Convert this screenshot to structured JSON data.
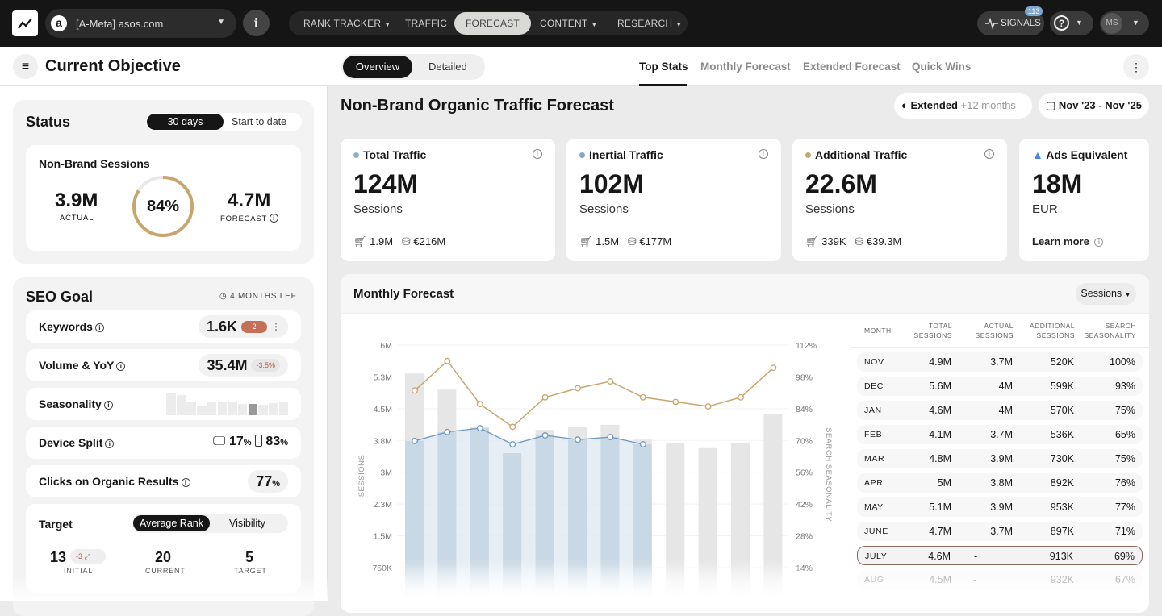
{
  "topbar": {
    "project": "[A-Meta] asos.com",
    "nav": [
      {
        "label": "RANK TRACKER",
        "caret": true
      },
      {
        "label": "TRAFFIC",
        "caret": false
      },
      {
        "label": "FORECAST",
        "caret": false,
        "active": true
      },
      {
        "label": "CONTENT",
        "caret": true
      },
      {
        "label": "RESEARCH",
        "caret": true
      }
    ],
    "signals_label": "SIGNALS",
    "signals_count": "113",
    "user_initials": "MS"
  },
  "left": {
    "title": "Current Objective",
    "status": {
      "title": "Status",
      "toggle": [
        "30 days",
        "Start to date"
      ],
      "card_title": "Non-Brand Sessions",
      "actual": "3.9M",
      "actual_label": "ACTUAL",
      "percent": "84%",
      "percent_value": 84,
      "forecast": "4.7M",
      "forecast_label": "FORECAST"
    },
    "seo": {
      "title": "SEO Goal",
      "time_left": "4 MONTHS LEFT",
      "keywords": {
        "label": "Keywords",
        "value": "1.6K",
        "badge": "2"
      },
      "volume": {
        "label": "Volume & YoY",
        "value": "35.4M",
        "change": "-3.5%"
      },
      "seasonality": {
        "label": "Seasonality",
        "levels": [
          100,
          93,
          75,
          65,
          75,
          76,
          77,
          71,
          69,
          67,
          72,
          76
        ],
        "highlight_index": 8
      },
      "device": {
        "label": "Device Split",
        "desktop": "17",
        "mobile": "83",
        "unit": "%"
      },
      "clicks": {
        "label": "Clicks on Organic Results",
        "value": "77",
        "unit": "%"
      },
      "target": {
        "label": "Target",
        "toggle": [
          "Average Rank",
          "Visibility"
        ],
        "initial": "13",
        "initial_change": "-3",
        "initial_label": "INITIAL",
        "current": "20",
        "current_label": "CURRENT",
        "target": "5",
        "target_label": "TARGET"
      }
    }
  },
  "main": {
    "view_toggle": [
      "Overview",
      "Detailed"
    ],
    "tabs": [
      "Top Stats",
      "Monthly Forecast",
      "Extended Forecast",
      "Quick Wins"
    ],
    "title": "Non-Brand Organic Traffic Forecast",
    "extended_label": "Extended",
    "extended_extra": "+12 months",
    "date_range": "Nov '23 - Nov '25",
    "stats": [
      {
        "title": "Total Traffic",
        "value": "124M",
        "unit": "Sessions",
        "conv": "1.9M",
        "revenue": "€216M",
        "dot": "#8fb0cf"
      },
      {
        "title": "Inertial Traffic",
        "value": "102M",
        "unit": "Sessions",
        "conv": "1.5M",
        "revenue": "€177M",
        "dot": "#7fa5c9"
      },
      {
        "title": "Additional Traffic",
        "value": "22.6M",
        "unit": "Sessions",
        "conv": "339K",
        "revenue": "€39.3M",
        "dot": "#c9a56e"
      }
    ],
    "ads": {
      "title": "Ads Equivalent",
      "value": "18M",
      "unit": "EUR",
      "link": "Learn more"
    },
    "forecast": {
      "title": "Monthly Forecast",
      "metric": "Sessions",
      "table": {
        "headers": [
          "MONTH",
          "TOTAL SESSIONS",
          "ACTUAL SESSIONS",
          "ADDITIONAL SESSIONS",
          "SEARCH SEASONALITY"
        ],
        "rows": [
          [
            "NOV",
            "4.9M",
            "3.7M",
            "520K",
            "100%"
          ],
          [
            "DEC",
            "5.6M",
            "4M",
            "599K",
            "93%"
          ],
          [
            "JAN",
            "4.6M",
            "4M",
            "570K",
            "75%"
          ],
          [
            "FEB",
            "4.1M",
            "3.7M",
            "536K",
            "65%"
          ],
          [
            "MAR",
            "4.8M",
            "3.9M",
            "730K",
            "75%"
          ],
          [
            "APR",
            "5M",
            "3.8M",
            "892K",
            "76%"
          ],
          [
            "MAY",
            "5.1M",
            "3.9M",
            "953K",
            "77%"
          ],
          [
            "JUNE",
            "4.7M",
            "3.7M",
            "897K",
            "71%"
          ],
          [
            "JULY",
            "4.6M",
            "-",
            "913K",
            "69%"
          ],
          [
            "AUG",
            "4.5M",
            "-",
            "932K",
            "67%"
          ]
        ],
        "highlight_row": 8
      }
    }
  },
  "chart_data": {
    "type": "bar",
    "ylabel": "SESSIONS",
    "y2label": "SEARCH SEASONALITY",
    "ylim": [
      0,
      6000000
    ],
    "y2lim": [
      0,
      112
    ],
    "yticks": [
      "750K",
      "1.5M",
      "2.3M",
      "3M",
      "3.8M",
      "4.5M",
      "5.3M",
      "6M"
    ],
    "y2ticks": [
      "14%",
      "28%",
      "42%",
      "56%",
      "70%",
      "84%",
      "98%",
      "112%"
    ],
    "grid": true,
    "series": [
      {
        "type": "bar",
        "values": [
          5.33,
          4.95,
          4.06,
          3.45,
          4.0,
          4.06,
          4.12,
          3.77,
          3.68,
          3.57,
          3.68,
          4.38
        ],
        "unit": "M",
        "color": "#e6e6e6"
      },
      {
        "type": "line-area",
        "values": [
          3.74,
          3.95,
          4.04,
          3.66,
          3.87,
          3.77,
          3.83,
          3.66
        ],
        "unit": "M",
        "color": "#6d98c0"
      },
      {
        "type": "line",
        "axis": "right",
        "values": [
          92,
          105,
          86,
          76,
          89,
          93,
          96,
          89,
          87,
          85,
          89,
          102
        ],
        "unit": "%",
        "color": "#c9a56e"
      }
    ]
  }
}
